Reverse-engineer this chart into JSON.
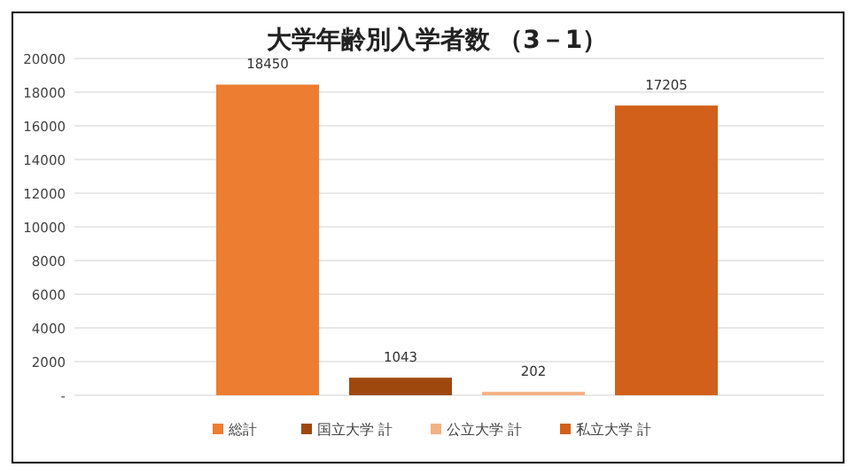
{
  "chart_data": {
    "type": "bar",
    "title": "大学年齢別入学者数 （3－1）",
    "categories": [
      null
    ],
    "series": [
      {
        "name": "総計",
        "color": "#ed7d31",
        "values": [
          18450
        ]
      },
      {
        "name": "国立大学 計",
        "color": "#9e480e",
        "values": [
          1043
        ]
      },
      {
        "name": "公立大学 計",
        "color": "#f4b183",
        "values": [
          202
        ]
      },
      {
        "name": "私立大学 計",
        "color": "#d2601a",
        "values": [
          17205
        ]
      }
    ],
    "ylim": [
      0,
      20000
    ],
    "yticks": [
      {
        "value": 0,
        "label": "-"
      },
      2000,
      4000,
      6000,
      8000,
      10000,
      12000,
      14000,
      16000,
      18000,
      20000
    ],
    "grid": "y",
    "legend": "bottom",
    "data_labels": true
  }
}
